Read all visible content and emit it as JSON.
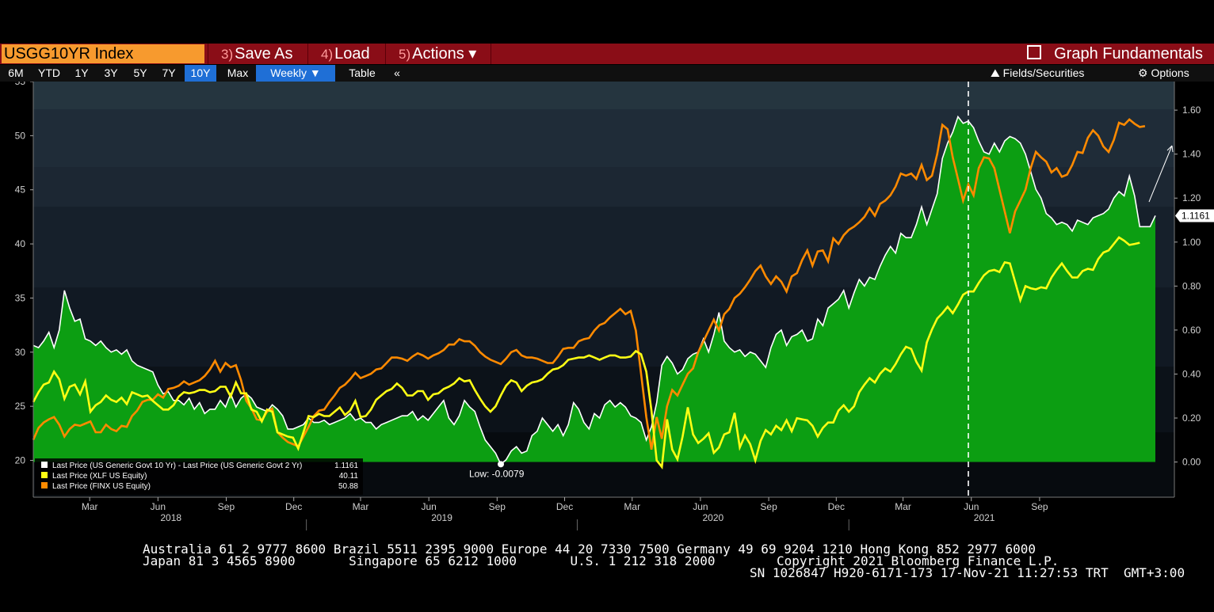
{
  "header": {
    "ticker": "USGG10YR Index",
    "menu": [
      {
        "num": "3)",
        "label": "Save As"
      },
      {
        "num": "4)",
        "label": "Load"
      },
      {
        "num": "5)",
        "label": "Actions ▾"
      }
    ],
    "graph_fundamentals": "Graph Fundamentals"
  },
  "toolbar": {
    "ranges": [
      "6M",
      "YTD",
      "1Y",
      "3Y",
      "5Y",
      "7Y",
      "10Y",
      "Max"
    ],
    "active_range": "10Y",
    "frequency": "Weekly ▼",
    "table": "Table",
    "collapse": "«",
    "fields": "Fields/Securities",
    "options": "Options"
  },
  "colors": {
    "spread": "#ffffff",
    "spread_fill": "#0c9e12",
    "xlf": "#ffff14",
    "finx": "#ff8a00"
  },
  "chart_data": {
    "type": "line",
    "x_start": "2017-12-29",
    "x_step_weeks": 1,
    "left_axis": {
      "ticks": [
        20,
        25,
        30,
        35,
        40,
        45,
        50,
        55
      ],
      "ylim": [
        16.6,
        55
      ]
    },
    "right_axis": {
      "ticks": [
        "0.00",
        "0.20",
        "0.40",
        "0.60",
        "0.80",
        "1.00",
        "1.20",
        "1.40",
        "1.60"
      ],
      "ylim": [
        -0.16,
        1.73
      ]
    },
    "x_month_labels": [
      "Mar",
      "Jun",
      "Sep",
      "Dec",
      "Mar",
      "Jun",
      "Sep",
      "Dec",
      "Mar",
      "Jun",
      "Sep",
      "Dec",
      "Mar",
      "Jun",
      "Sep"
    ],
    "x_year_labels": [
      "2018",
      "2019",
      "2020",
      "2021"
    ],
    "low_annotation": "Low: -0.0079",
    "legend": [
      {
        "label": "Last Price (US Generic Govt 10 Yr) - Last Price (US Generic Govt 2 Yr)",
        "value": "1.1161"
      },
      {
        "label": "Last Price (XLF US Equity)",
        "value": "40.11"
      },
      {
        "label": "Last Price (FINX US Equity)",
        "value": "50.88"
      }
    ],
    "last_value_tags": {
      "spread": "1.1161",
      "xlf": "40.11",
      "finx": "50.88"
    },
    "series": [
      {
        "name": "Last Price (US Generic Govt 10 Yr) - Last Price (US Generic Govt 2 Yr)",
        "key": "spread",
        "axis": "right",
        "values": [
          0.53,
          0.52,
          0.55,
          0.59,
          0.52,
          0.6,
          0.78,
          0.7,
          0.64,
          0.65,
          0.56,
          0.55,
          0.53,
          0.55,
          0.52,
          0.5,
          0.51,
          0.49,
          0.51,
          0.46,
          0.44,
          0.43,
          0.42,
          0.41,
          0.35,
          0.31,
          0.32,
          0.28,
          0.28,
          0.26,
          0.29,
          0.24,
          0.27,
          0.22,
          0.24,
          0.24,
          0.28,
          0.25,
          0.31,
          0.25,
          0.29,
          0.31,
          0.29,
          0.25,
          0.24,
          0.23,
          0.26,
          0.24,
          0.21,
          0.15,
          0.15,
          0.16,
          0.17,
          0.2,
          0.18,
          0.18,
          0.19,
          0.17,
          0.18,
          0.19,
          0.2,
          0.22,
          0.19,
          0.2,
          0.18,
          0.18,
          0.15,
          0.17,
          0.18,
          0.19,
          0.2,
          0.21,
          0.21,
          0.23,
          0.19,
          0.21,
          0.19,
          0.22,
          0.25,
          0.28,
          0.2,
          0.17,
          0.21,
          0.28,
          0.25,
          0.23,
          0.16,
          0.1,
          0.07,
          0.04,
          -0.01,
          0.01,
          0.05,
          0.07,
          0.04,
          0.05,
          0.12,
          0.14,
          0.2,
          0.17,
          0.14,
          0.17,
          0.12,
          0.17,
          0.27,
          0.24,
          0.18,
          0.15,
          0.22,
          0.2,
          0.26,
          0.28,
          0.25,
          0.27,
          0.25,
          0.21,
          0.2,
          0.18,
          0.1,
          0.16,
          0.27,
          0.44,
          0.48,
          0.45,
          0.4,
          0.42,
          0.47,
          0.49,
          0.5,
          0.56,
          0.5,
          0.58,
          0.68,
          0.55,
          0.52,
          0.5,
          0.51,
          0.48,
          0.5,
          0.49,
          0.46,
          0.43,
          0.52,
          0.58,
          0.6,
          0.53,
          0.57,
          0.58,
          0.6,
          0.55,
          0.56,
          0.65,
          0.62,
          0.7,
          0.72,
          0.74,
          0.78,
          0.7,
          0.77,
          0.83,
          0.8,
          0.84,
          0.83,
          0.89,
          0.94,
          0.98,
          0.95,
          1.04,
          1.02,
          1.02,
          1.08,
          1.16,
          1.08,
          1.15,
          1.22,
          1.38,
          1.45,
          1.5,
          1.57,
          1.54,
          1.55,
          1.52,
          1.46,
          1.41,
          1.4,
          1.45,
          1.41,
          1.46,
          1.48,
          1.47,
          1.45,
          1.4,
          1.32,
          1.24,
          1.2,
          1.13,
          1.11,
          1.08,
          1.09,
          1.08,
          1.05,
          1.1,
          1.09,
          1.08,
          1.11,
          1.12,
          1.13,
          1.15,
          1.2,
          1.23,
          1.21,
          1.3,
          1.21,
          1.07,
          1.07,
          1.07,
          1.12
        ]
      },
      {
        "name": "Last Price (XLF US Equity)",
        "key": "xlf",
        "axis": "left",
        "values": [
          25.4,
          26.3,
          27.0,
          27.2,
          28.2,
          27.5,
          25.7,
          26.8,
          27.0,
          26.1,
          27.3,
          24.5,
          25.1,
          25.4,
          26.0,
          25.6,
          25.4,
          25.8,
          25.2,
          26.3,
          26.1,
          25.9,
          26.0,
          25.5,
          25.1,
          24.7,
          24.7,
          25.1,
          25.9,
          26.3,
          26.2,
          26.3,
          26.5,
          26.5,
          26.3,
          26.4,
          26.8,
          26.8,
          25.9,
          27.2,
          26.2,
          26.2,
          24.7,
          24.5,
          23.6,
          24.7,
          24.5,
          22.6,
          22.4,
          22.2,
          22.1,
          21.1,
          22.6,
          24.1,
          24.0,
          24.3,
          24.1,
          24.1,
          24.5,
          24.9,
          24.2,
          24.6,
          25.5,
          24.0,
          24.1,
          24.7,
          25.6,
          26.0,
          26.4,
          26.6,
          27.1,
          26.7,
          26.0,
          26.0,
          26.4,
          26.4,
          25.6,
          26.1,
          26.2,
          26.6,
          26.8,
          27.1,
          27.6,
          27.3,
          27.4,
          26.5,
          25.7,
          25.0,
          24.5,
          25.0,
          26.0,
          26.9,
          27.4,
          27.2,
          26.4,
          26.9,
          27.2,
          27.3,
          27.5,
          28.0,
          28.4,
          28.5,
          28.8,
          29.3,
          29.4,
          29.5,
          29.5,
          29.7,
          29.5,
          29.3,
          29.5,
          29.7,
          29.7,
          29.5,
          29.5,
          29.6,
          30.1,
          29.8,
          28.2,
          24.6,
          20.0,
          19.4,
          23.8,
          21.0,
          20.1,
          22.2,
          24.9,
          22.4,
          21.6,
          22.0,
          22.5,
          20.7,
          21.2,
          22.4,
          22.6,
          24.4,
          21.2,
          22.3,
          21.5,
          20.0,
          21.8,
          22.8,
          22.4,
          23.2,
          22.8,
          23.7,
          22.7,
          23.9,
          23.8,
          23.7,
          23.2,
          22.2,
          23.0,
          23.5,
          23.5,
          24.6,
          25.1,
          24.5,
          25.0,
          26.3,
          27.0,
          27.6,
          27.2,
          28.0,
          28.5,
          28.2,
          28.9,
          29.8,
          30.5,
          30.3,
          29.1,
          28.3,
          30.9,
          32.1,
          33.1,
          33.6,
          34.2,
          33.6,
          34.4,
          35.3,
          35.6,
          35.6,
          36.4,
          37.1,
          37.5,
          37.6,
          37.4,
          38.3,
          38.2,
          36.5,
          34.8,
          36.1,
          35.9,
          35.8,
          36.0,
          35.9,
          36.9,
          37.6,
          38.2,
          37.5,
          36.9,
          36.9,
          37.5,
          37.7,
          37.6,
          38.6,
          39.2,
          39.4,
          40.0,
          40.6,
          40.3,
          39.9,
          40.0,
          40.11
        ]
      },
      {
        "name": "Last Price (FINX US Equity)",
        "key": "finx",
        "axis": "left",
        "values": [
          21.9,
          23.0,
          23.5,
          23.8,
          24.0,
          23.3,
          22.2,
          22.9,
          23.3,
          23.2,
          23.4,
          23.6,
          22.6,
          22.6,
          23.3,
          22.9,
          22.7,
          23.2,
          23.1,
          24.1,
          24.6,
          25.4,
          25.6,
          25.6,
          26.1,
          25.8,
          26.6,
          26.7,
          26.9,
          27.3,
          27.0,
          27.2,
          27.4,
          27.8,
          28.4,
          29.2,
          28.2,
          29.0,
          28.6,
          28.8,
          27.4,
          25.5,
          24.8,
          23.8,
          23.7,
          24.5,
          24.8,
          22.6,
          22.1,
          21.7,
          21.5,
          21.3,
          22.2,
          23.1,
          24.1,
          24.6,
          24.7,
          25.4,
          26.0,
          26.7,
          27.0,
          27.5,
          28.1,
          27.6,
          27.8,
          28.0,
          28.4,
          28.5,
          29.0,
          29.5,
          29.5,
          29.4,
          29.2,
          29.6,
          29.9,
          29.7,
          29.4,
          29.7,
          29.9,
          30.2,
          30.7,
          30.7,
          31.2,
          31.0,
          31.0,
          30.6,
          30.0,
          29.6,
          29.3,
          29.1,
          28.9,
          29.4,
          30.0,
          30.2,
          29.7,
          29.5,
          29.5,
          29.4,
          29.2,
          29.0,
          29.0,
          29.6,
          30.3,
          30.4,
          30.4,
          31.0,
          31.2,
          31.3,
          32.0,
          32.5,
          32.7,
          33.2,
          33.6,
          34.0,
          33.5,
          33.8,
          32.0,
          28.0,
          24.0,
          21.0,
          24.0,
          22.0,
          25.0,
          26.5,
          26.0,
          27.0,
          28.0,
          28.5,
          30.0,
          31.0,
          32.0,
          33.0,
          32.0,
          33.5,
          34.0,
          35.0,
          35.4,
          36.0,
          36.7,
          37.5,
          38.0,
          37.0,
          36.3,
          37.0,
          36.5,
          35.6,
          37.0,
          37.3,
          38.5,
          39.4,
          38.0,
          39.3,
          39.4,
          38.4,
          40.5,
          40.0,
          40.8,
          41.3,
          41.6,
          42.0,
          42.5,
          43.3,
          42.6,
          43.7,
          44.0,
          44.5,
          45.3,
          46.5,
          46.3,
          46.5,
          46.0,
          47.3,
          45.9,
          46.3,
          48.3,
          51.0,
          50.6,
          48.0,
          46.0,
          44.0,
          45.5,
          44.5,
          47.0,
          48.0,
          47.9,
          47.0,
          45.0,
          43.0,
          41.0,
          43.0,
          44.0,
          45.0,
          47.0,
          48.5,
          48.0,
          47.6,
          46.6,
          47.0,
          46.2,
          46.4,
          47.3,
          48.5,
          48.4,
          49.8,
          50.5,
          50.0,
          49.0,
          48.5,
          49.6,
          51.2,
          51.0,
          51.5,
          51.1,
          50.8,
          50.88
        ]
      }
    ]
  },
  "footer": {
    "line1": "Australia 61 2 9777 8600 Brazil 5511 2395 9000 Europe 44 20 7330 7500 Germany 49 69 9204 1210 Hong Kong 852 2977 6000",
    "line2a": "Japan 81 3 4565 8900       Singapore 65 6212 1000       U.S. 1 212 318 2000",
    "line2b": "Copyright 2021 Bloomberg Finance L.P.",
    "line3": "SN 1026847 H920-6171-173 17-Nov-21 11:27:53 TRT  GMT+3:00"
  }
}
